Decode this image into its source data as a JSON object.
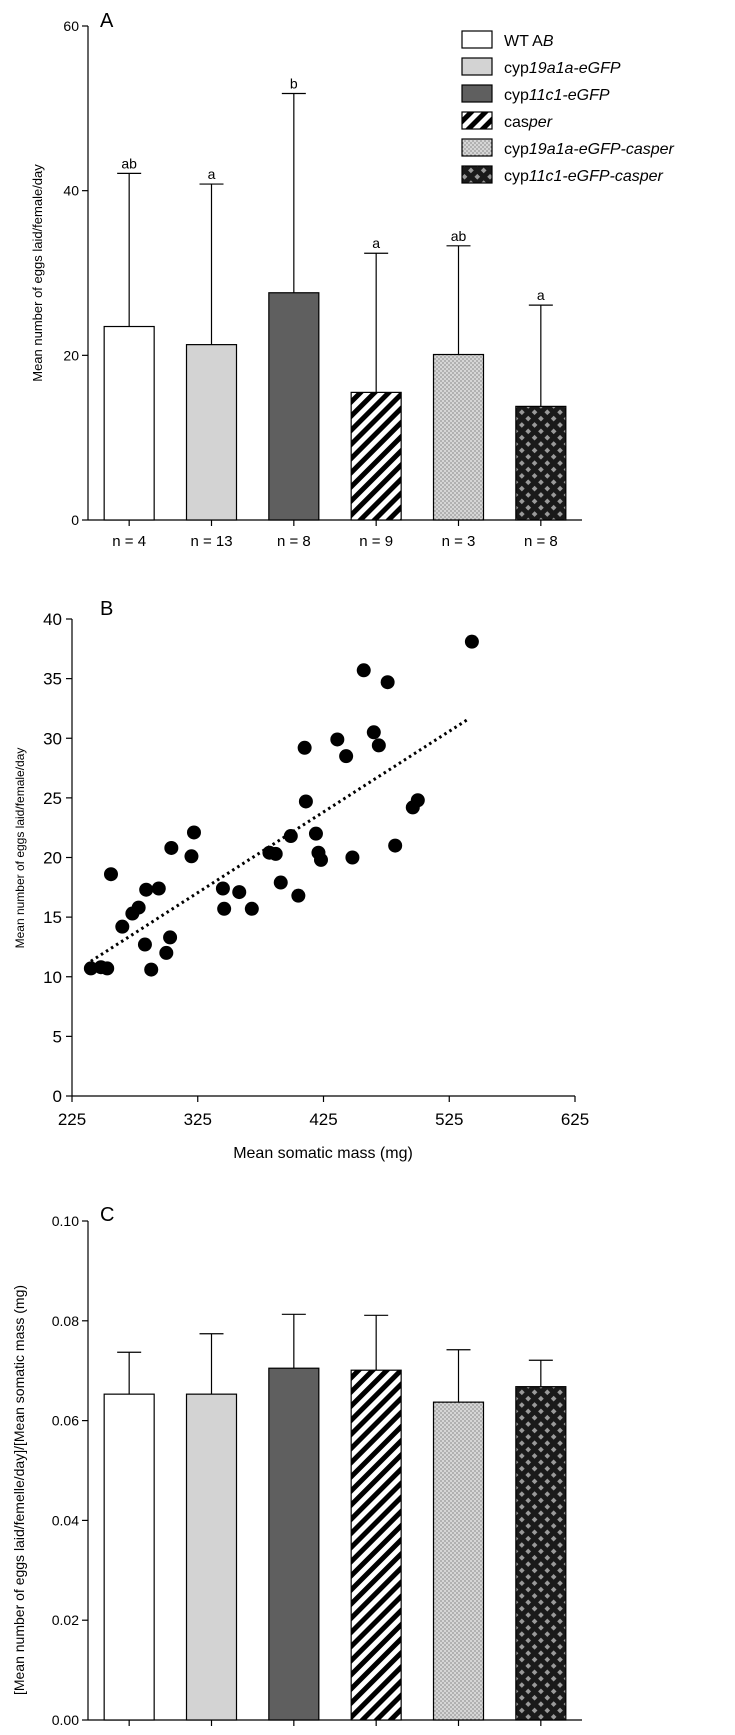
{
  "chart_data": [
    {
      "panel": "A",
      "type": "bar",
      "ylabel": "Mean number of eggs laid/female/day",
      "ylim": [
        0,
        60
      ],
      "yticks": [
        "0",
        "20",
        "40",
        "60"
      ],
      "categories": [
        "n = 4",
        "n = 13",
        "n = 8",
        "n = 9",
        "n = 3",
        "n = 8"
      ],
      "values": [
        23.5,
        21.3,
        27.6,
        15.5,
        20.1,
        13.8
      ],
      "error_upper": [
        42.1,
        40.8,
        51.8,
        32.4,
        33.3,
        26.1
      ],
      "sig_letters": [
        "ab",
        "a",
        "b",
        "a",
        "ab",
        "a"
      ],
      "legend_position": "top-right",
      "legend": [
        {
          "plain": "WT A",
          "italic": "B",
          "rest": "",
          "pattern": "white"
        },
        {
          "plain": "cyp",
          "italic": "19a1a-eGFP",
          "rest": "",
          "pattern": "lightgray"
        },
        {
          "plain": "cyp",
          "italic": "11c1-eGFP",
          "rest": "",
          "pattern": "darkgray"
        },
        {
          "plain": "cas",
          "italic": "per",
          "rest": "",
          "pattern": "hatch"
        },
        {
          "plain": "cyp",
          "italic": "19a1a-eGFP-casper",
          "rest": "",
          "pattern": "dots"
        },
        {
          "plain": "cyp",
          "italic": "11c1-eGFP-casper",
          "rest": "",
          "pattern": "checker"
        }
      ]
    },
    {
      "panel": "B",
      "type": "scatter",
      "xlabel": "Mean somatic mass (mg)",
      "ylabel": "Mean number of eggs laid/female/day",
      "xlim": [
        225,
        625
      ],
      "ylim": [
        0,
        40
      ],
      "xticks": [
        "225",
        "325",
        "425",
        "525",
        "625"
      ],
      "yticks": [
        "0",
        "5",
        "10",
        "15",
        "20",
        "25",
        "30",
        "35",
        "40"
      ],
      "points": [
        [
          240,
          10.7
        ],
        [
          248,
          10.8
        ],
        [
          253,
          10.7
        ],
        [
          256,
          18.6
        ],
        [
          265,
          14.2
        ],
        [
          273,
          15.3
        ],
        [
          278,
          15.8
        ],
        [
          283,
          12.7
        ],
        [
          284,
          17.3
        ],
        [
          288,
          10.6
        ],
        [
          294,
          17.4
        ],
        [
          300,
          12.0
        ],
        [
          303,
          13.3
        ],
        [
          304,
          20.8
        ],
        [
          320,
          20.1
        ],
        [
          322,
          22.1
        ],
        [
          345,
          17.4
        ],
        [
          346,
          15.7
        ],
        [
          358,
          17.1
        ],
        [
          368,
          15.7
        ],
        [
          382,
          20.4
        ],
        [
          387,
          20.3
        ],
        [
          391,
          17.9
        ],
        [
          399,
          21.8
        ],
        [
          405,
          16.8
        ],
        [
          410,
          29.2
        ],
        [
          411,
          24.7
        ],
        [
          419,
          22.0
        ],
        [
          421,
          20.4
        ],
        [
          423,
          19.8
        ],
        [
          436,
          29.9
        ],
        [
          443,
          28.5
        ],
        [
          448,
          20.0
        ],
        [
          457,
          35.7
        ],
        [
          465,
          30.5
        ],
        [
          469,
          29.4
        ],
        [
          476,
          34.7
        ],
        [
          482,
          21.0
        ],
        [
          496,
          24.2
        ],
        [
          500,
          24.8
        ],
        [
          543,
          38.1
        ]
      ],
      "trendline": {
        "x": [
          240,
          540
        ],
        "y": [
          11.3,
          31.6
        ],
        "style": "dotted"
      }
    },
    {
      "panel": "C",
      "type": "bar",
      "ylabel": "[Mean number of eggs laid/femelle/day]/[Mean somatic mass (mg)",
      "ylim": [
        0,
        0.1
      ],
      "yticks": [
        "0.00",
        "0.02",
        "0.04",
        "0.06",
        "0.08",
        "0.10"
      ],
      "values": [
        0.0653,
        0.0653,
        0.0705,
        0.0701,
        0.0637,
        0.0668
      ],
      "error_upper": [
        0.0737,
        0.0774,
        0.0813,
        0.0811,
        0.0742,
        0.0721
      ]
    }
  ]
}
